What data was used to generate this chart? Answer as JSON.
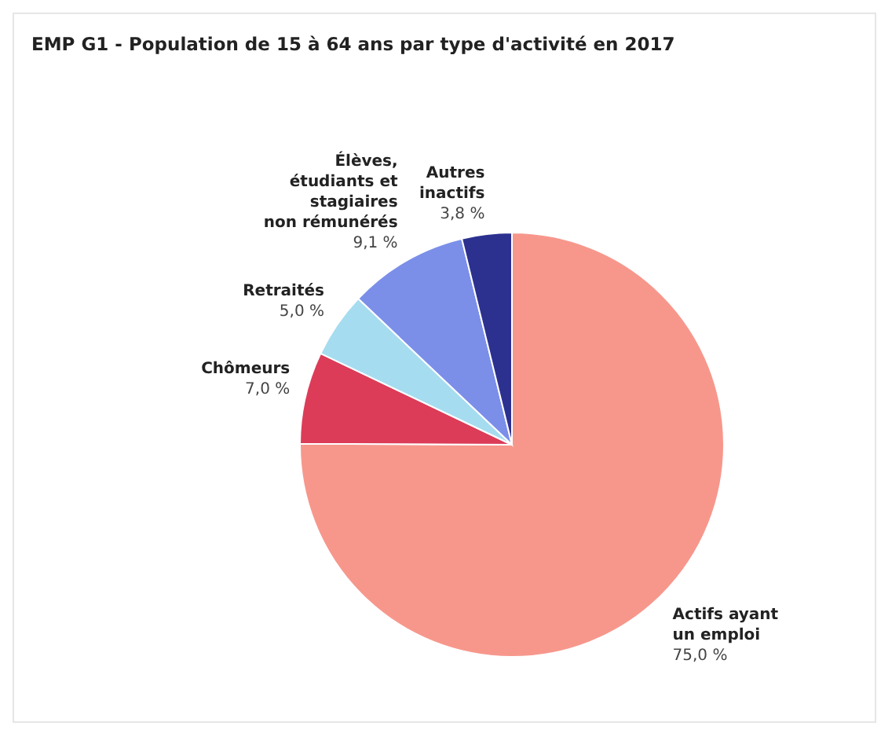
{
  "chart_data": {
    "type": "pie",
    "title": "EMP G1 - Population de 15 à 64 ans par type d'activité en 2017",
    "categories": [
      "Actifs ayant un emploi",
      "Chômeurs",
      "Retraités",
      "Élèves, étudiants et stagiaires non rémunérés",
      "Autres inactifs"
    ],
    "values": [
      75.0,
      7.0,
      5.0,
      9.1,
      3.8
    ],
    "value_labels": [
      "75,0 %",
      "7,0 %",
      "5,0 %",
      "9,1 %",
      "3,8 %"
    ],
    "colors": [
      "#f7978c",
      "#dc3c58",
      "#a6dcef",
      "#7b8fe9",
      "#2c3190"
    ]
  }
}
